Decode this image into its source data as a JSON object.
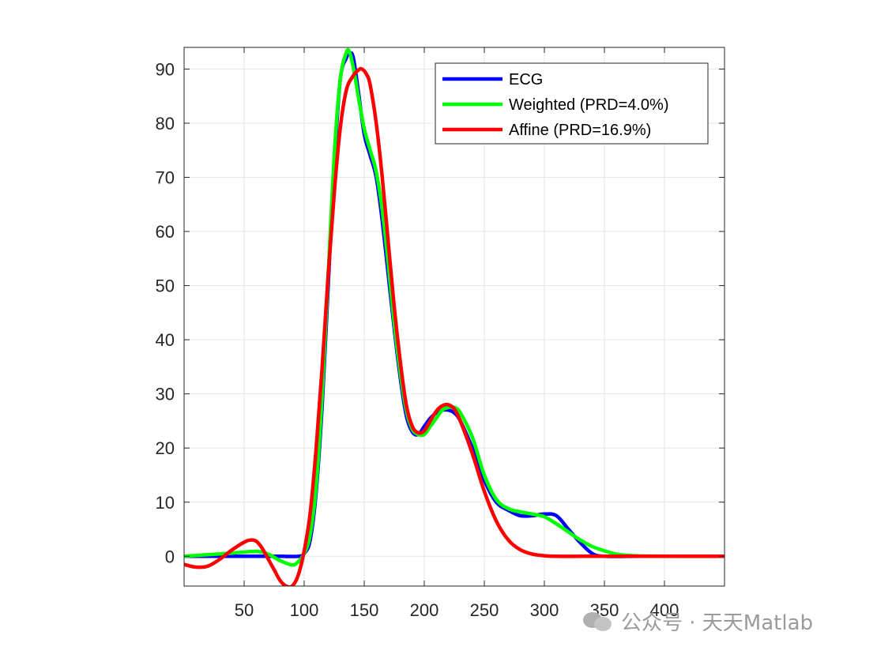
{
  "chart_data": {
    "type": "line",
    "title": "",
    "xlabel": "",
    "ylabel": "",
    "xlim": [
      0,
      450
    ],
    "ylim": [
      -5.5,
      94
    ],
    "xticks": [
      50,
      100,
      150,
      200,
      250,
      300,
      350,
      400
    ],
    "yticks": [
      0,
      10,
      20,
      30,
      40,
      50,
      60,
      70,
      80,
      90
    ],
    "grid": true,
    "legend_position": "top-right",
    "series": [
      {
        "name": "ECG",
        "color": "#0000ff",
        "x": [
          0,
          20,
          40,
          60,
          80,
          95,
          100,
          105,
          110,
          115,
          120,
          125,
          130,
          135,
          138,
          141,
          145,
          150,
          155,
          160,
          165,
          170,
          175,
          180,
          185,
          190,
          195,
          200,
          205,
          210,
          215,
          220,
          225,
          230,
          240,
          250,
          260,
          270,
          280,
          290,
          300,
          310,
          320,
          330,
          340,
          350,
          380,
          450
        ],
        "y": [
          0,
          0,
          0,
          0,
          0,
          0,
          0.5,
          3,
          12,
          28,
          50,
          72,
          88,
          92,
          93,
          92,
          86,
          78,
          74,
          70,
          62,
          52,
          42,
          33,
          26,
          23,
          22.5,
          24,
          25.5,
          26.5,
          27,
          27,
          26.5,
          25,
          20,
          14,
          10,
          8.5,
          7.5,
          7.5,
          7.8,
          7.5,
          5,
          2.5,
          0.5,
          0,
          0,
          0
        ]
      },
      {
        "name": "Weighted (PRD=4.0%)",
        "color": "#00ff00",
        "x": [
          0,
          20,
          40,
          60,
          70,
          80,
          90,
          95,
          100,
          105,
          110,
          115,
          120,
          125,
          130,
          135,
          138,
          142,
          145,
          150,
          155,
          160,
          165,
          170,
          175,
          180,
          185,
          190,
          195,
          200,
          205,
          210,
          215,
          220,
          225,
          230,
          240,
          250,
          260,
          270,
          280,
          290,
          300,
          310,
          320,
          330,
          340,
          350,
          360,
          370,
          380,
          400,
          450
        ],
        "y": [
          0,
          0.3,
          0.6,
          0.9,
          0.4,
          -0.8,
          -1.6,
          -1,
          0.5,
          4,
          13,
          30,
          52,
          74,
          88,
          93,
          93,
          89,
          85,
          79,
          75,
          71,
          64,
          54,
          43,
          34,
          27,
          23.5,
          22.5,
          22.5,
          24,
          25.5,
          27,
          27.5,
          27.5,
          26.5,
          22,
          15,
          10.5,
          8.8,
          8.2,
          7.8,
          7.3,
          6,
          4.5,
          3,
          1.8,
          1,
          0.4,
          0.15,
          0.05,
          0,
          0
        ]
      },
      {
        "name": "Affine (PRD=16.9%)",
        "color": "#ff0000",
        "x": [
          0,
          10,
          20,
          30,
          40,
          50,
          55,
          60,
          65,
          70,
          75,
          80,
          85,
          90,
          95,
          100,
          105,
          110,
          115,
          120,
          125,
          130,
          135,
          140,
          145,
          148,
          152,
          155,
          160,
          165,
          170,
          175,
          180,
          185,
          190,
          195,
          200,
          205,
          210,
          215,
          220,
          225,
          230,
          240,
          250,
          260,
          270,
          280,
          290,
          300,
          310,
          330,
          350,
          400,
          450
        ],
        "y": [
          -1.5,
          -2,
          -1.8,
          -0.5,
          1.2,
          2.6,
          3,
          2.8,
          1.5,
          -0.5,
          -2.5,
          -4.5,
          -5.5,
          -5.5,
          -3.5,
          1,
          8,
          20,
          35,
          52,
          67,
          79,
          86,
          88.5,
          89.8,
          90,
          89,
          87,
          80,
          70,
          58,
          46,
          36,
          28,
          24,
          22.8,
          23.2,
          25,
          26.8,
          27.8,
          28,
          27.2,
          25,
          19,
          12,
          6.5,
          3,
          1.2,
          0.4,
          0.1,
          0,
          0,
          0,
          0,
          0
        ]
      }
    ]
  },
  "watermark": {
    "icon": "wechat-icon",
    "text": "公众号 · 天天Matlab"
  }
}
